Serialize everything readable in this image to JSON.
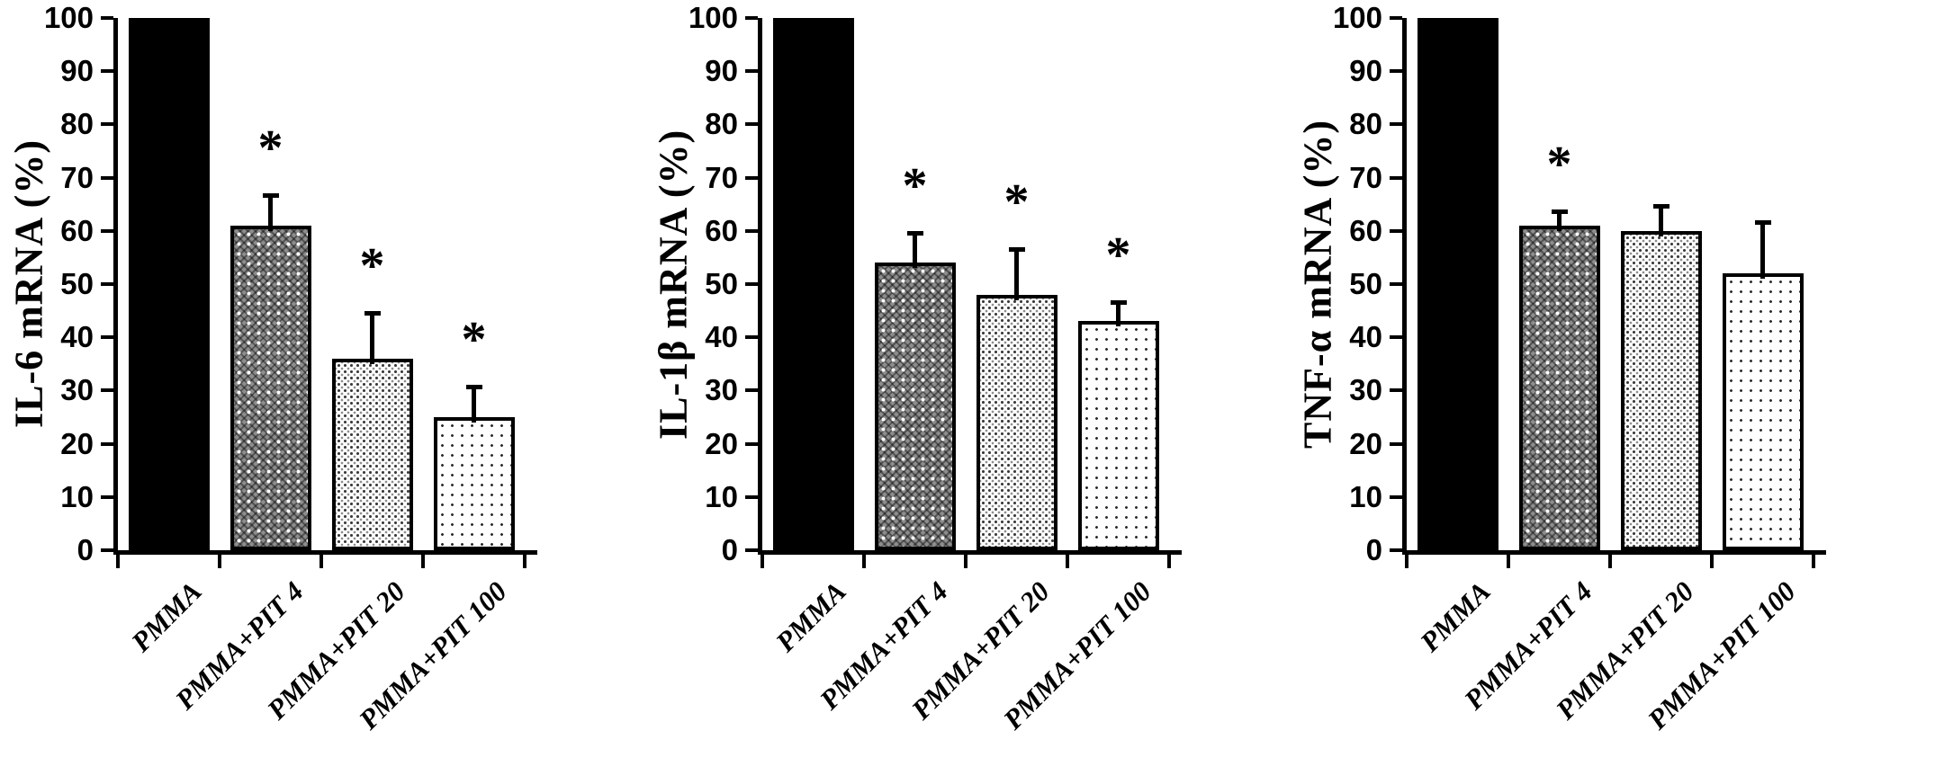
{
  "figure": {
    "background": "#ffffff",
    "ink_color": "#000000",
    "significance_symbol": "*"
  },
  "chart_data": [
    {
      "type": "bar",
      "title": "",
      "ylabel": "IL-6  mRNA (%)",
      "xlabel": "",
      "categories": [
        "PMMA",
        "PMMA+PIT 4",
        "PMMA+PIT 20",
        "PMMA+PIT 100"
      ],
      "values": [
        100,
        61,
        36,
        25
      ],
      "error_plus": [
        0,
        6,
        9,
        6
      ],
      "significance": [
        "",
        "*",
        "*",
        "*"
      ],
      "bar_patterns": [
        "solid-black",
        "dark-dotted",
        "medium-dotted",
        "light-dotted"
      ],
      "ylim": [
        0,
        100
      ],
      "yticks": [
        0,
        10,
        20,
        30,
        40,
        50,
        60,
        70,
        80,
        90,
        100
      ],
      "grid": false,
      "legend": "none"
    },
    {
      "type": "bar",
      "title": "",
      "ylabel": "IL-1β  mRNA (%)",
      "xlabel": "",
      "categories": [
        "PMMA",
        "PMMA+PIT 4",
        "PMMA+PIT 20",
        "PMMA+PIT 100"
      ],
      "values": [
        100,
        54,
        48,
        43
      ],
      "error_plus": [
        0,
        6,
        9,
        4
      ],
      "significance": [
        "",
        "*",
        "*",
        "*"
      ],
      "bar_patterns": [
        "solid-black",
        "dark-dotted",
        "medium-dotted",
        "light-dotted"
      ],
      "ylim": [
        0,
        100
      ],
      "yticks": [
        0,
        10,
        20,
        30,
        40,
        50,
        60,
        70,
        80,
        90,
        100
      ],
      "grid": false,
      "legend": "none"
    },
    {
      "type": "bar",
      "title": "",
      "ylabel": "TNF-α  mRNA (%)",
      "xlabel": "",
      "categories": [
        "PMMA",
        "PMMA+PIT 4",
        "PMMA+PIT 20",
        "PMMA+PIT 100"
      ],
      "values": [
        100,
        61,
        60,
        52
      ],
      "error_plus": [
        0,
        3,
        5,
        10
      ],
      "significance": [
        "",
        "*",
        "",
        ""
      ],
      "bar_patterns": [
        "solid-black",
        "dark-dotted",
        "medium-dotted",
        "light-dotted"
      ],
      "ylim": [
        0,
        100
      ],
      "yticks": [
        0,
        10,
        20,
        30,
        40,
        50,
        60,
        70,
        80,
        90,
        100
      ],
      "grid": false,
      "legend": "none"
    }
  ]
}
